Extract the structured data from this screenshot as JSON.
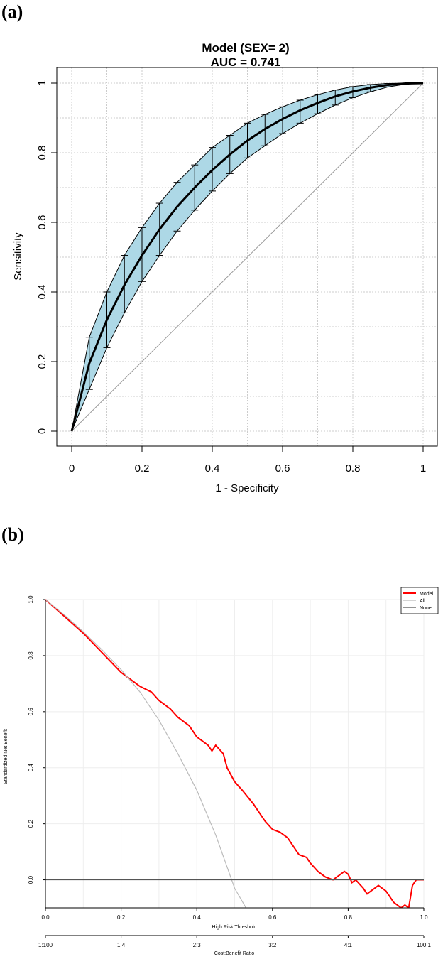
{
  "panel_a_label": "(a)",
  "panel_b_label": "(b)",
  "chart_data": [
    {
      "type": "line",
      "title": "Model (SEX=  2)",
      "subtitle": "AUC =  0.741",
      "xlabel": "1 - Specificity",
      "ylabel": "Sensitivity",
      "xlim": [
        0,
        1
      ],
      "ylim": [
        0,
        1
      ],
      "x_ticks": [
        "0",
        "0.2",
        "0.4",
        "0.6",
        "0.8",
        "1"
      ],
      "y_ticks": [
        "0",
        "0.2",
        "0.4",
        "0.6",
        "0.8",
        "1"
      ],
      "grid": true,
      "colors": {
        "band": "#add8e6",
        "curve": "#000000",
        "diagonal": "#999999",
        "grid": "#cccccc"
      },
      "x": [
        0,
        0.05,
        0.1,
        0.15,
        0.2,
        0.25,
        0.3,
        0.35,
        0.4,
        0.45,
        0.5,
        0.55,
        0.6,
        0.65,
        0.7,
        0.75,
        0.8,
        0.85,
        0.9,
        0.95,
        1
      ],
      "series": [
        {
          "values": [
            0,
            0.195,
            0.32,
            0.42,
            0.505,
            0.58,
            0.645,
            0.7,
            0.75,
            0.795,
            0.835,
            0.868,
            0.897,
            0.922,
            0.943,
            0.962,
            0.976,
            0.987,
            0.995,
            0.999,
            1
          ]
        }
      ],
      "ci_upper": [
        0,
        0.27,
        0.4,
        0.505,
        0.585,
        0.655,
        0.715,
        0.765,
        0.815,
        0.85,
        0.885,
        0.91,
        0.932,
        0.951,
        0.967,
        0.98,
        0.99,
        0.996,
        0.999,
        1,
        1
      ],
      "ci_lower": [
        0,
        0.12,
        0.24,
        0.34,
        0.43,
        0.505,
        0.575,
        0.635,
        0.69,
        0.74,
        0.785,
        0.82,
        0.855,
        0.885,
        0.912,
        0.937,
        0.958,
        0.975,
        0.989,
        0.997,
        1
      ]
    },
    {
      "type": "line",
      "xlabel": "High Risk Threshold",
      "ylabel": "Standardized Net Benefit",
      "xlim": [
        0,
        1
      ],
      "ylim": [
        -0.1,
        1
      ],
      "x_ticks": [
        "0.0",
        "0.2",
        "0.4",
        "0.6",
        "0.8",
        "1.0"
      ],
      "y_ticks": [
        "0.0",
        "0.2",
        "0.4",
        "0.6",
        "0.8",
        "1.0"
      ],
      "secondary_xlabel": "Cost:Benefit Ratio",
      "secondary_x_ticks": [
        "1:100",
        "1:4",
        "2:3",
        "3:2",
        "4:1",
        "100:1"
      ],
      "grid": true,
      "legend_position": "top-right",
      "series": [
        {
          "name": "Model",
          "color": "#ff0000",
          "x": [
            0,
            0.05,
            0.1,
            0.15,
            0.2,
            0.23,
            0.25,
            0.28,
            0.3,
            0.33,
            0.35,
            0.38,
            0.4,
            0.42,
            0.43,
            0.44,
            0.45,
            0.47,
            0.48,
            0.5,
            0.52,
            0.55,
            0.58,
            0.6,
            0.62,
            0.64,
            0.65,
            0.67,
            0.69,
            0.7,
            0.72,
            0.74,
            0.76,
            0.78,
            0.79,
            0.8,
            0.81,
            0.82,
            0.84,
            0.85,
            0.86,
            0.88,
            0.9,
            0.91,
            0.92,
            0.94,
            0.95,
            0.96,
            0.97,
            0.98,
            1.0
          ],
          "y": [
            1.0,
            0.94,
            0.88,
            0.81,
            0.74,
            0.71,
            0.69,
            0.67,
            0.64,
            0.61,
            0.58,
            0.55,
            0.51,
            0.49,
            0.48,
            0.46,
            0.48,
            0.45,
            0.4,
            0.35,
            0.32,
            0.27,
            0.21,
            0.18,
            0.17,
            0.15,
            0.13,
            0.09,
            0.08,
            0.06,
            0.03,
            0.01,
            0.0,
            0.02,
            0.03,
            0.02,
            -0.01,
            0.0,
            -0.03,
            -0.05,
            -0.04,
            -0.02,
            -0.04,
            -0.06,
            -0.08,
            -0.1,
            -0.09,
            -0.1,
            -0.02,
            0.0,
            0.0
          ]
        },
        {
          "name": "All",
          "color": "#bbbbbb",
          "x": [
            0,
            0.05,
            0.1,
            0.15,
            0.2,
            0.25,
            0.3,
            0.35,
            0.4,
            0.45,
            0.5,
            0.53
          ],
          "y": [
            1.0,
            0.945,
            0.885,
            0.82,
            0.75,
            0.67,
            0.57,
            0.45,
            0.32,
            0.16,
            -0.03,
            -0.1
          ]
        },
        {
          "name": "None",
          "color": "#555555",
          "x": [
            0,
            1
          ],
          "y": [
            0,
            0
          ]
        }
      ]
    }
  ]
}
